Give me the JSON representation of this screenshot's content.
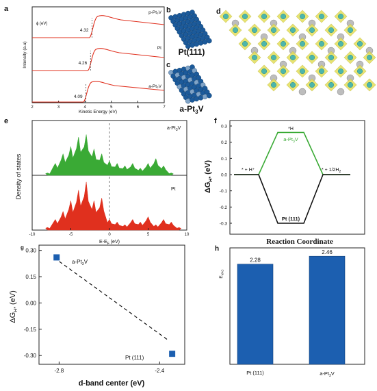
{
  "figure_title": "",
  "colors": {
    "red": "#e0301e",
    "green": "#3aaa35",
    "blue": "#1c5fb0",
    "black": "#111111",
    "atom": "#1c5a9a",
    "yellow": "#e6e05a",
    "teal": "#4db6ac"
  },
  "panels": {
    "a": {
      "letter": "a"
    },
    "b": {
      "letter": "b",
      "label": "Pt(111)"
    },
    "c": {
      "letter": "c",
      "label": "a-Pt3V"
    },
    "d": {
      "letter": "d"
    },
    "e": {
      "letter": "e"
    },
    "f": {
      "letter": "f"
    },
    "g": {
      "letter": "g"
    },
    "h": {
      "letter": "h"
    }
  },
  "chart_data": [
    {
      "panel": "a",
      "type": "line",
      "xlabel": "Kinetic Energy (eV)",
      "ylabel": "Intensity (a.u)",
      "y_annotation": "ϕ (eV)",
      "xlim": [
        2,
        7
      ],
      "x_ticks": [
        "2",
        "3",
        "4",
        "5",
        "6",
        "7"
      ],
      "series": [
        {
          "name": "p-Pt3V",
          "label": "p-Pt₃V",
          "work_function": "4.32",
          "onset": 4.32
        },
        {
          "name": "Pt",
          "label": "Pt",
          "work_function": "4.26",
          "onset": 4.26
        },
        {
          "name": "a-Pt3V",
          "label": "a-Pt₃V",
          "work_function": "4.09",
          "onset": 4.09
        }
      ]
    },
    {
      "panel": "e",
      "type": "area",
      "xlabel": "E-E_F (eV)",
      "ylabel": "Density of states",
      "xlim": [
        -10,
        10
      ],
      "x_ticks": [
        "-10",
        "-5",
        "0",
        "5",
        "10"
      ],
      "series": [
        {
          "name": "a-Pt3V",
          "label": "a-Pt₃V",
          "color": "#3aaa35",
          "x": [
            -8,
            -7,
            -6,
            -5,
            -4,
            -3,
            -2,
            -1,
            0,
            1,
            2,
            3,
            4,
            5,
            6,
            7,
            8
          ],
          "y": [
            0.05,
            0.25,
            0.45,
            0.6,
            0.8,
            0.85,
            0.55,
            0.45,
            0.3,
            0.25,
            0.2,
            0.25,
            0.15,
            0.25,
            0.35,
            0.2,
            0.05
          ]
        },
        {
          "name": "Pt",
          "label": "Pt",
          "color": "#e0301e",
          "x": [
            -8,
            -7,
            -6,
            -5,
            -4,
            -3,
            -2,
            -1,
            0,
            1,
            2,
            3,
            4,
            5,
            6,
            7,
            8,
            9
          ],
          "y": [
            0.05,
            0.2,
            0.35,
            0.55,
            0.75,
            0.9,
            0.55,
            0.6,
            0.2,
            0.15,
            0.1,
            0.2,
            0.15,
            0.25,
            0.1,
            0.2,
            0.15,
            0.05
          ]
        }
      ]
    },
    {
      "panel": "f",
      "type": "line",
      "ylabel": "ΔG_H* (eV)",
      "xlabel": "Reaction Coordinate",
      "ylim": [
        -0.3,
        0.3
      ],
      "y_ticks": [
        "0.3",
        "0.2",
        "0.1",
        "0.0",
        "-0.1",
        "-0.2",
        "-0.3"
      ],
      "step_labels": [
        "* + H⁺",
        "*H",
        "* + 1/2H₂"
      ],
      "series": [
        {
          "name": "a-Pt3V",
          "label": "a-Pt₃V",
          "color": "#3aaa35",
          "values": [
            0,
            0.26,
            0
          ]
        },
        {
          "name": "Pt (111)",
          "label": "Pt (111)",
          "color": "#111111",
          "values": [
            0,
            -0.3,
            0
          ]
        }
      ]
    },
    {
      "panel": "g",
      "type": "scatter",
      "xlabel": "d-band center (eV)",
      "ylabel": "ΔG_H* (eV)",
      "xlim": [
        -2.88,
        -2.3
      ],
      "ylim": [
        -0.35,
        0.33
      ],
      "x_ticks": [
        "-2.8",
        "-2.4"
      ],
      "y_ticks": [
        "0.30",
        "0.15",
        "0.00",
        "-0.15",
        "-0.30"
      ],
      "points": [
        {
          "label": "a-Pt₃V",
          "x": -2.81,
          "y": 0.26
        },
        {
          "label": "Pt (111)",
          "x": -2.35,
          "y": -0.29
        }
      ]
    },
    {
      "panel": "h",
      "type": "bar",
      "ylabel": "E_VAC",
      "categories": [
        "Pt (111)",
        "a-Pt₃V"
      ],
      "values": [
        2.28,
        2.46
      ],
      "data_labels": [
        "2.28",
        "2.46"
      ],
      "ylim": [
        0,
        2.65
      ]
    }
  ]
}
